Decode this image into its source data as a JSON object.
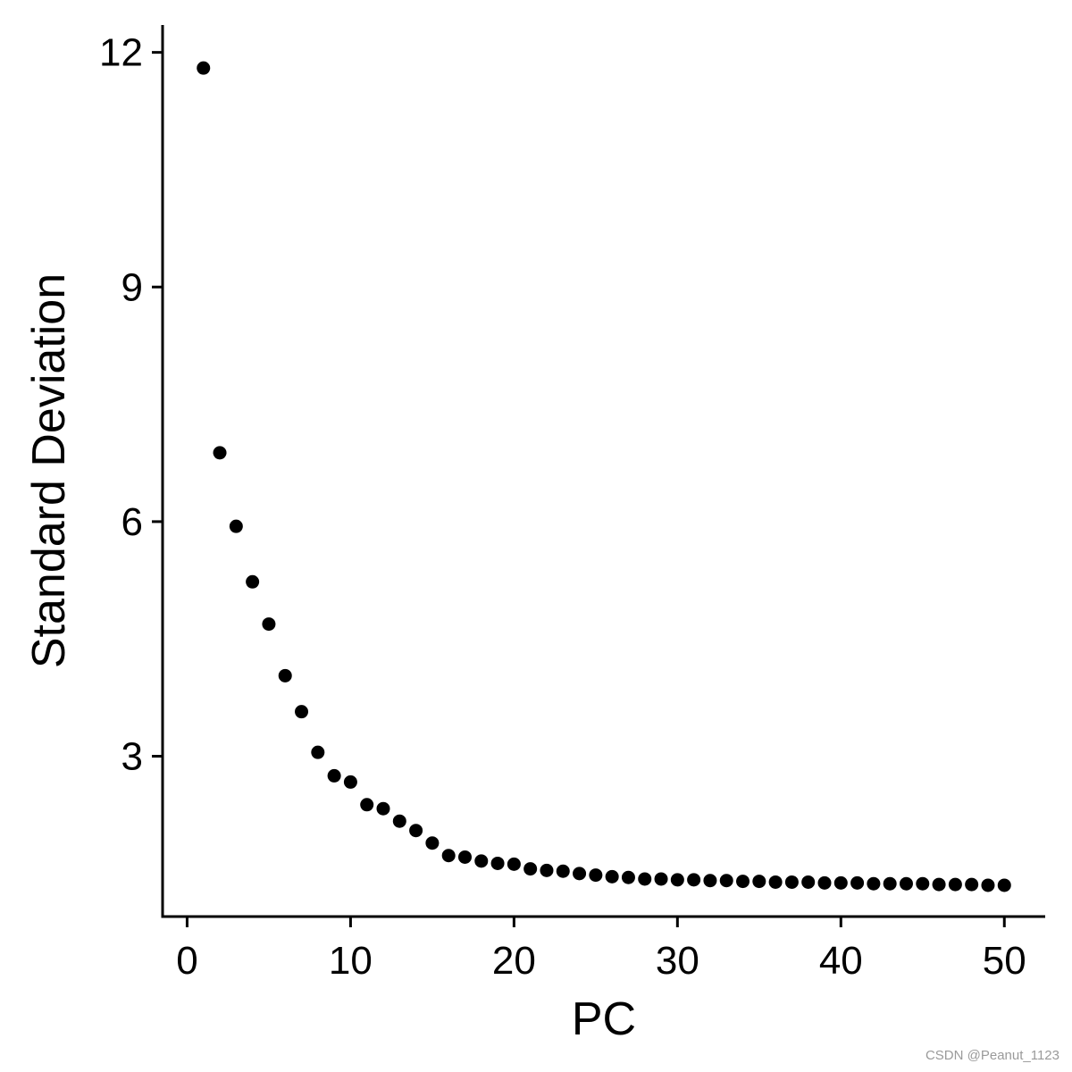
{
  "chart_data": {
    "type": "scatter",
    "xlabel": "PC",
    "ylabel": "Standard Deviation",
    "xlim": [
      -1.5,
      52.5
    ],
    "ylim": [
      0.95,
      12.35
    ],
    "xticks": [
      0,
      10,
      20,
      30,
      40,
      50
    ],
    "yticks": [
      3,
      6,
      9,
      12
    ],
    "grid": false,
    "legend": "none",
    "point_color": "#000000",
    "series": [
      {
        "x": [
          1,
          2,
          3,
          4,
          5,
          6,
          7,
          8,
          9,
          10,
          11,
          12,
          13,
          14,
          15,
          16,
          17,
          18,
          19,
          20,
          21,
          22,
          23,
          24,
          25,
          26,
          27,
          28,
          29,
          30,
          31,
          32,
          33,
          34,
          35,
          36,
          37,
          38,
          39,
          40,
          41,
          42,
          43,
          44,
          45,
          46,
          47,
          48,
          49,
          50
        ],
        "y": [
          11.8,
          6.88,
          5.94,
          5.23,
          4.69,
          4.03,
          3.57,
          3.05,
          2.75,
          2.67,
          2.38,
          2.33,
          2.17,
          2.05,
          1.89,
          1.73,
          1.71,
          1.66,
          1.63,
          1.62,
          1.56,
          1.54,
          1.53,
          1.5,
          1.48,
          1.46,
          1.45,
          1.43,
          1.43,
          1.42,
          1.42,
          1.41,
          1.41,
          1.4,
          1.4,
          1.39,
          1.39,
          1.39,
          1.38,
          1.38,
          1.38,
          1.37,
          1.37,
          1.37,
          1.37,
          1.36,
          1.36,
          1.36,
          1.35,
          1.35
        ]
      }
    ]
  },
  "watermark": "CSDN @Peanut_1123"
}
